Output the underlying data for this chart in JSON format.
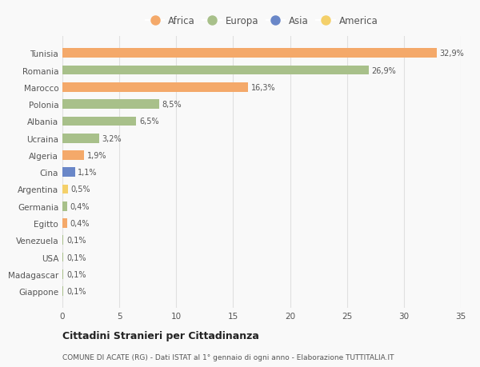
{
  "countries": [
    "Tunisia",
    "Romania",
    "Marocco",
    "Polonia",
    "Albania",
    "Ucraina",
    "Algeria",
    "Cina",
    "Argentina",
    "Germania",
    "Egitto",
    "Venezuela",
    "USA",
    "Madagascar",
    "Giappone"
  ],
  "values": [
    32.9,
    26.9,
    16.3,
    8.5,
    6.5,
    3.2,
    1.9,
    1.1,
    0.5,
    0.4,
    0.4,
    0.1,
    0.1,
    0.1,
    0.1
  ],
  "labels": [
    "32,9%",
    "26,9%",
    "16,3%",
    "8,5%",
    "6,5%",
    "3,2%",
    "1,9%",
    "1,1%",
    "0,5%",
    "0,4%",
    "0,4%",
    "0,1%",
    "0,1%",
    "0,1%",
    "0,1%"
  ],
  "colors": [
    "#F4A96A",
    "#A8C08A",
    "#F4A96A",
    "#A8C08A",
    "#A8C08A",
    "#A8C08A",
    "#F4A96A",
    "#6A87C8",
    "#F4D06A",
    "#A8C08A",
    "#F4A96A",
    "#A8C08A",
    "#A8C08A",
    "#A8C08A",
    "#A8C08A"
  ],
  "continent_colors": {
    "Africa": "#F4A96A",
    "Europa": "#A8C08A",
    "Asia": "#6A87C8",
    "America": "#F4D06A"
  },
  "title": "Cittadini Stranieri per Cittadinanza",
  "subtitle": "COMUNE DI ACATE (RG) - Dati ISTAT al 1° gennaio di ogni anno - Elaborazione TUTTITALIA.IT",
  "xlim": [
    0,
    35
  ],
  "xticks": [
    0,
    5,
    10,
    15,
    20,
    25,
    30,
    35
  ],
  "background_color": "#f9f9f9",
  "grid_color": "#e0e0e0",
  "text_color": "#555555",
  "bar_height": 0.55
}
